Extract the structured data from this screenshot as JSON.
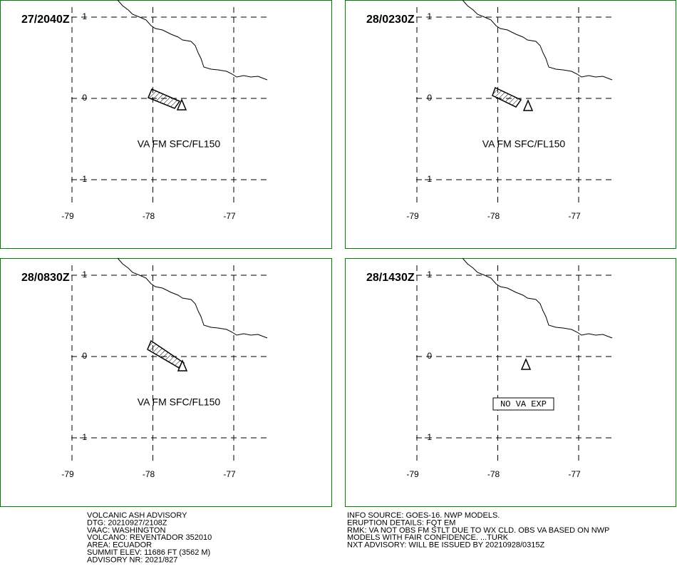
{
  "panels": [
    {
      "time": "27/2040Z",
      "label": "VA FM SFC/FL150"
    },
    {
      "time": "28/0230Z",
      "label": "VA FM SFC/FL150"
    },
    {
      "time": "28/0830Z",
      "label": "VA FM SFC/FL150"
    },
    {
      "time": "28/1430Z",
      "label": "NO VA EXP"
    }
  ],
  "grid": {
    "lon": [
      -79,
      -78,
      -77
    ],
    "lat": [
      1,
      0,
      -1
    ]
  },
  "advisory_left": [
    "VOLCANIC ASH ADVISORY",
    "DTG: 20210927/2108Z",
    "VAAC: WASHINGTON",
    "VOLCANO: REVENTADOR 352010",
    "AREA: ECUADOR",
    "SUMMIT ELEV: 11686 FT (3562 M)",
    "ADVISORY NR: 2021/827"
  ],
  "advisory_right": [
    "INFO SOURCE: GOES-16. NWP MODELS.",
    "ERUPTION DETAILS: FQT EM",
    "RMK: VA NOT OBS FM STLT DUE TO WX CLD. OBS VA BASED ON NWP",
    "MODELS WITH FAIR CONFIDENCE. ...TURK",
    "NXT ADVISORY: WILL BE ISSUED BY 20210928/0315Z"
  ]
}
